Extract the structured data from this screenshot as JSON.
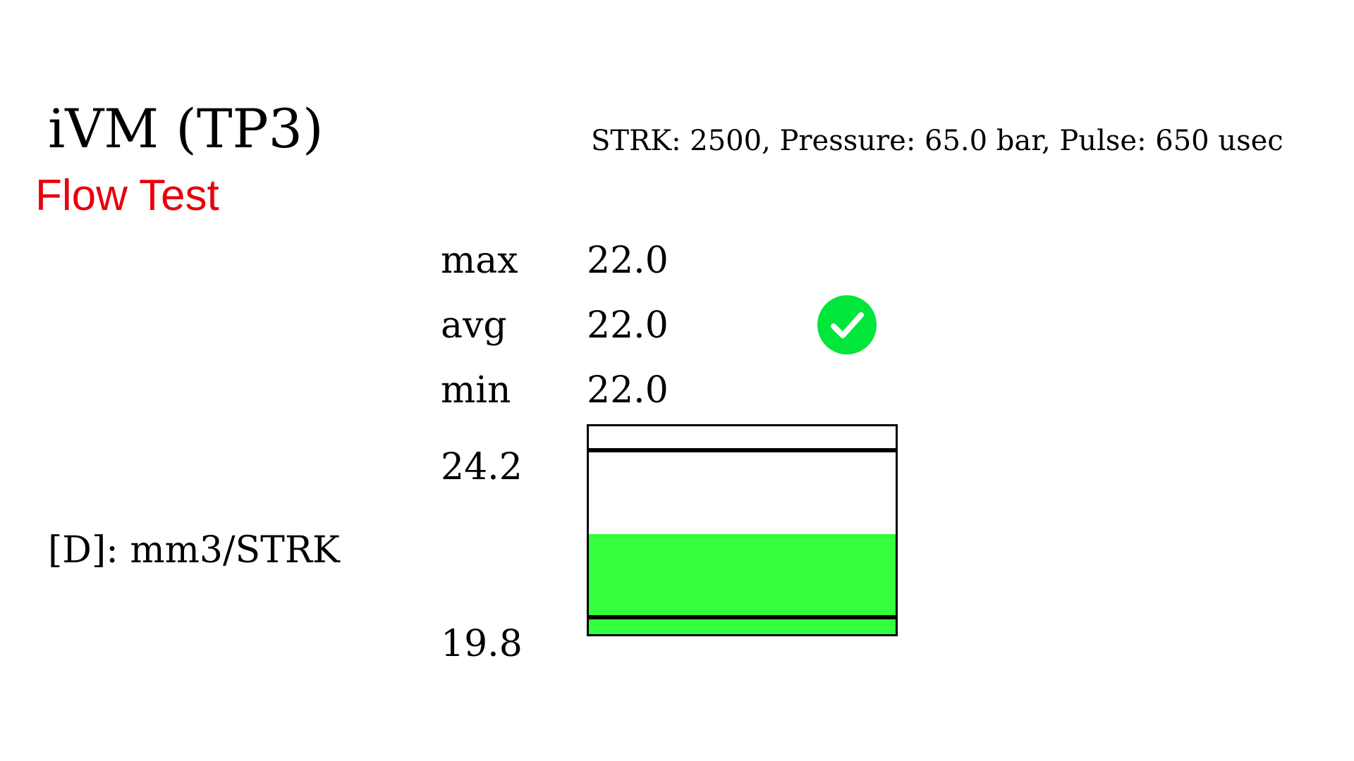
{
  "header": {
    "title": "iVM (TP3)",
    "subtitle": "Flow Test",
    "subtitle_color": "#e8000b"
  },
  "parameters": {
    "text": "STRK: 2500, Pressure: 65.0 bar, Pulse: 650 usec"
  },
  "stats": {
    "max_label": "max",
    "max_value": "22.0",
    "avg_label": "avg",
    "avg_value": "22.0",
    "min_label": "min",
    "min_value": "22.0"
  },
  "status": {
    "icon": "check-circle-icon",
    "color": "#00e63a"
  },
  "gauge": {
    "upper_label": "24.2",
    "lower_label": "19.8",
    "upper_limit": 24.2,
    "lower_limit": 19.8,
    "value": 22.0,
    "fill_color": "#33ff3c"
  },
  "units": {
    "text": "[D]: mm3/STRK"
  }
}
